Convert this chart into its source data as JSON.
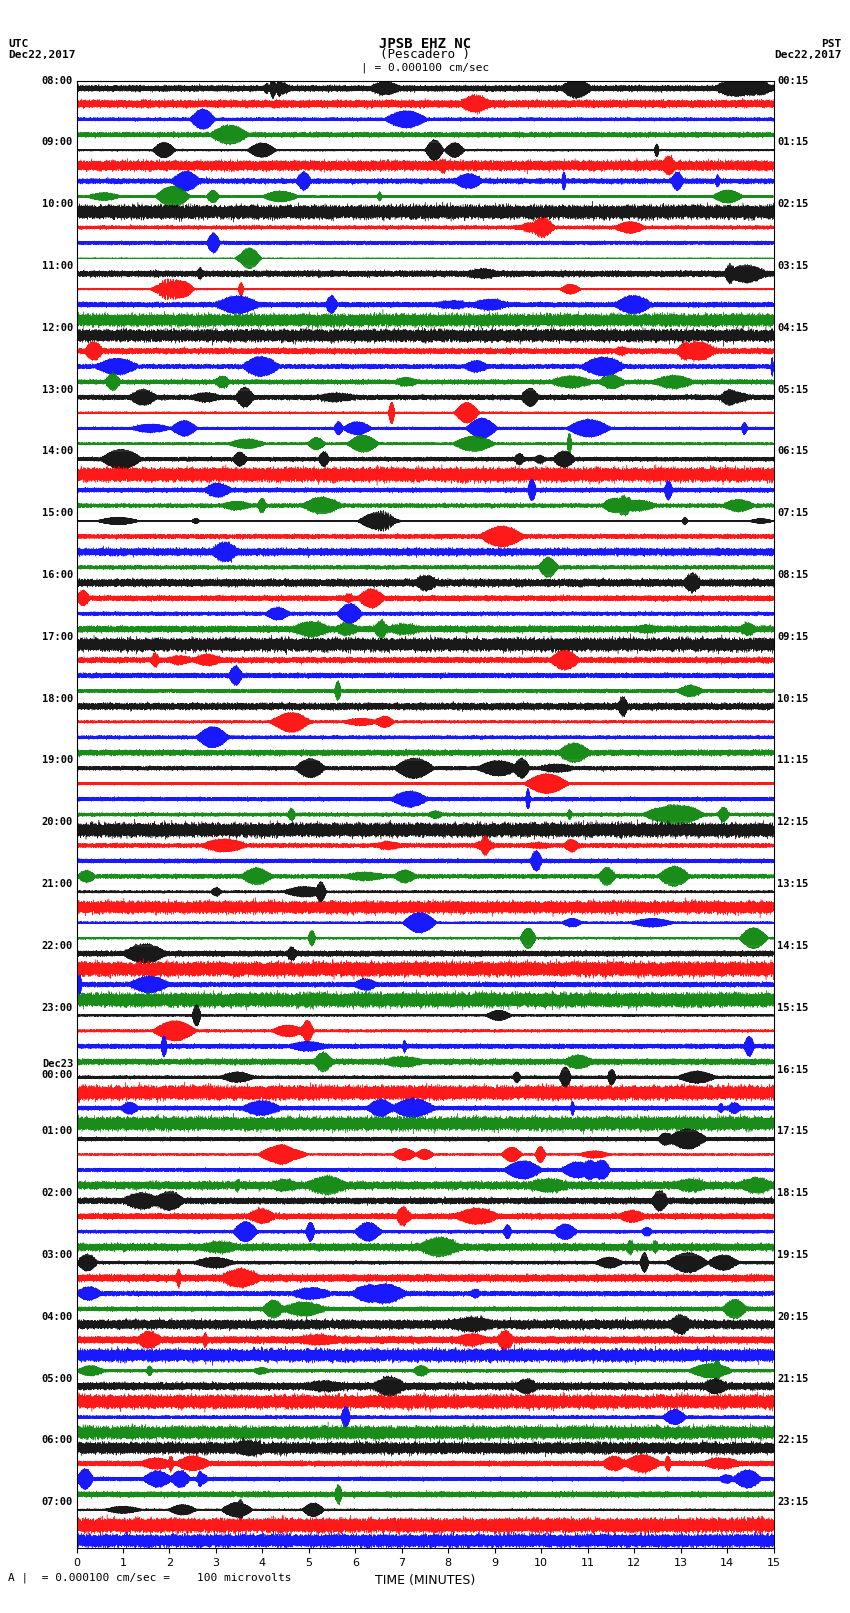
{
  "title_line1": "JPSB EHZ NC",
  "title_line2": "(Pescadero )",
  "title_scale": "| = 0.000100 cm/sec",
  "left_header_line1": "UTC",
  "left_header_line2": "Dec22,2017",
  "right_header_line1": "PST",
  "right_header_line2": "Dec22,2017",
  "xlabel": "TIME (MINUTES)",
  "bottom_label": "A |  = 0.000100 cm/sec =    100 microvolts",
  "utc_labels": [
    "08:00",
    "",
    "",
    "",
    "09:00",
    "",
    "",
    "",
    "10:00",
    "",
    "",
    "",
    "11:00",
    "",
    "",
    "",
    "12:00",
    "",
    "",
    "",
    "13:00",
    "",
    "",
    "",
    "14:00",
    "",
    "",
    "",
    "15:00",
    "",
    "",
    "",
    "16:00",
    "",
    "",
    "",
    "17:00",
    "",
    "",
    "",
    "18:00",
    "",
    "",
    "",
    "19:00",
    "",
    "",
    "",
    "20:00",
    "",
    "",
    "",
    "21:00",
    "",
    "",
    "",
    "22:00",
    "",
    "",
    "",
    "23:00",
    "",
    "",
    "",
    "Dec23\n00:00",
    "",
    "",
    "",
    "01:00",
    "",
    "",
    "",
    "02:00",
    "",
    "",
    "",
    "03:00",
    "",
    "",
    "",
    "04:00",
    "",
    "",
    "",
    "05:00",
    "",
    "",
    "",
    "06:00",
    "",
    "",
    "",
    "07:00",
    "",
    ""
  ],
  "pst_labels": [
    "00:15",
    "",
    "",
    "",
    "01:15",
    "",
    "",
    "",
    "02:15",
    "",
    "",
    "",
    "03:15",
    "",
    "",
    "",
    "04:15",
    "",
    "",
    "",
    "05:15",
    "",
    "",
    "",
    "06:15",
    "",
    "",
    "",
    "07:15",
    "",
    "",
    "",
    "08:15",
    "",
    "",
    "",
    "09:15",
    "",
    "",
    "",
    "10:15",
    "",
    "",
    "",
    "11:15",
    "",
    "",
    "",
    "12:15",
    "",
    "",
    "",
    "13:15",
    "",
    "",
    "",
    "14:15",
    "",
    "",
    "",
    "15:15",
    "",
    "",
    "",
    "16:15",
    "",
    "",
    "",
    "17:15",
    "",
    "",
    "",
    "18:15",
    "",
    "",
    "",
    "19:15",
    "",
    "",
    "",
    "20:15",
    "",
    "",
    "",
    "21:15",
    "",
    "",
    "",
    "22:15",
    "",
    "",
    "",
    "23:15",
    "",
    ""
  ],
  "colors": [
    "black",
    "red",
    "blue",
    "green"
  ],
  "num_traces": 95,
  "trace_duration_minutes": 15,
  "sample_rate": 100,
  "background_color": "white",
  "trace_amplitude": 0.35,
  "noise_base": 0.05,
  "seed": 42
}
